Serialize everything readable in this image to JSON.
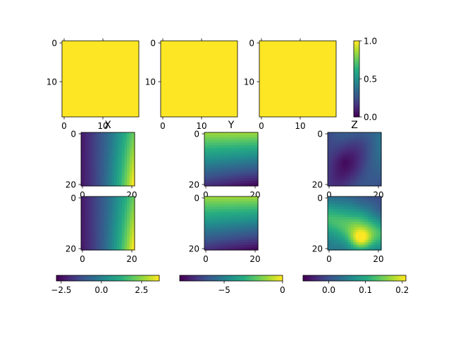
{
  "chart_data": [
    {
      "id": "top-1",
      "type": "heatmap",
      "value_range": [
        0,
        1
      ],
      "fill": "constant",
      "level": 1.0,
      "n": 20,
      "xticks": [
        "0",
        "10"
      ],
      "yticks": [
        "0",
        "10"
      ],
      "title": ""
    },
    {
      "id": "top-2",
      "type": "heatmap",
      "value_range": [
        0,
        1
      ],
      "fill": "constant",
      "level": 1.0,
      "n": 20,
      "xticks": [
        "0",
        "10"
      ],
      "yticks": [
        "0",
        "10"
      ],
      "title": ""
    },
    {
      "id": "top-3",
      "type": "heatmap",
      "value_range": [
        0,
        1
      ],
      "fill": "constant",
      "level": 1.0,
      "n": 20,
      "xticks": [
        "0",
        "10"
      ],
      "yticks": [
        "0",
        "10"
      ],
      "title": ""
    },
    {
      "id": "top-colorbar",
      "type": "colorbar",
      "orientation": "vertical",
      "range": [
        0,
        1
      ],
      "ticks": [
        "0.0",
        "0.5",
        "1.0"
      ]
    },
    {
      "id": "mid-x",
      "type": "heatmap",
      "value_range": [
        -2.8,
        3.6
      ],
      "fill": "x-gradient",
      "n": 21,
      "title": "X",
      "xticks": [
        "0",
        "20"
      ],
      "yticks": [
        "0",
        "20"
      ]
    },
    {
      "id": "mid-y",
      "type": "heatmap",
      "value_range": [
        -8.8,
        0
      ],
      "fill": "y-gradient",
      "n": 21,
      "title": "Y",
      "xticks": [
        "0",
        "20"
      ],
      "yticks": [
        "0",
        "20"
      ]
    },
    {
      "id": "mid-z",
      "type": "heatmap",
      "value_range": [
        -0.07,
        0.21
      ],
      "fill": "z-blotchy",
      "n": 21,
      "title": "Z",
      "xticks": [
        "0",
        "20"
      ],
      "yticks": [
        "0",
        "20"
      ]
    },
    {
      "id": "bot-x",
      "type": "heatmap",
      "value_range": [
        -2.8,
        3.6
      ],
      "fill": "x-gradient",
      "n": 21,
      "title": "",
      "xticks": [
        "0",
        "20"
      ],
      "yticks": [
        "0",
        "20"
      ]
    },
    {
      "id": "bot-y",
      "type": "heatmap",
      "value_range": [
        -8.8,
        0
      ],
      "fill": "y-gradient",
      "n": 21,
      "title": "",
      "xticks": [
        "0",
        "20"
      ],
      "yticks": [
        "0",
        "20"
      ]
    },
    {
      "id": "bot-z",
      "type": "heatmap",
      "value_range": [
        -0.07,
        0.21
      ],
      "fill": "z-diagonal",
      "n": 21,
      "title": "",
      "xticks": [
        "0",
        "20"
      ],
      "yticks": [
        "0",
        "20"
      ]
    },
    {
      "id": "colorbar-x",
      "type": "colorbar",
      "orientation": "horizontal",
      "range": [
        -2.8,
        3.6
      ],
      "ticks": [
        "−2.5",
        "0.0",
        "2.5"
      ]
    },
    {
      "id": "colorbar-y",
      "type": "colorbar",
      "orientation": "horizontal",
      "range": [
        -8.8,
        0
      ],
      "ticks": [
        "−5",
        "0"
      ]
    },
    {
      "id": "colorbar-z",
      "type": "colorbar",
      "orientation": "horizontal",
      "range": [
        -0.07,
        0.21
      ],
      "ticks": [
        "0.0",
        "0.1",
        "0.2"
      ]
    }
  ]
}
